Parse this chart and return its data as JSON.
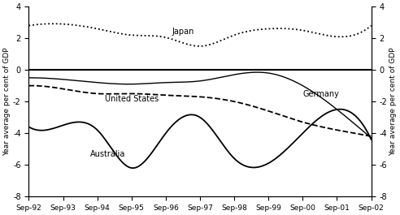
{
  "title_left": "Year average per cent of GDP",
  "title_right": "Year average per cent of GDP",
  "x_labels": [
    "Sep-92",
    "Sep-93",
    "Sep-94",
    "Sep-95",
    "Sep-96",
    "Sep-97",
    "Sep-98",
    "Sep-99",
    "Sep-00",
    "Sep-01",
    "Sep-02"
  ],
  "ylim": [
    -8,
    4
  ],
  "yticks": [
    -8,
    -6,
    -4,
    -2,
    0,
    2,
    4
  ],
  "background_color": "#ffffff",
  "japan": [
    2.8,
    2.9,
    2.6,
    2.2,
    2.05,
    1.5,
    2.2,
    2.6,
    2.5,
    2.1,
    2.8
  ],
  "germany": [
    -0.5,
    -0.6,
    -0.8,
    -0.9,
    -0.8,
    -0.7,
    -0.3,
    -0.2,
    -1.0,
    -2.5,
    -4.3
  ],
  "united_states": [
    -1.0,
    -1.2,
    -1.5,
    -1.5,
    -1.6,
    -1.7,
    -2.0,
    -2.6,
    -3.3,
    -3.8,
    -4.2
  ],
  "australia": [
    -3.6,
    -3.5,
    -3.8,
    -6.2,
    -4.0,
    -3.0,
    -5.6,
    -5.9,
    -4.0,
    -2.5,
    -4.4
  ],
  "label_japan": "Japan",
  "label_germany": "Germany",
  "label_us": "United States",
  "label_au": "Australia"
}
